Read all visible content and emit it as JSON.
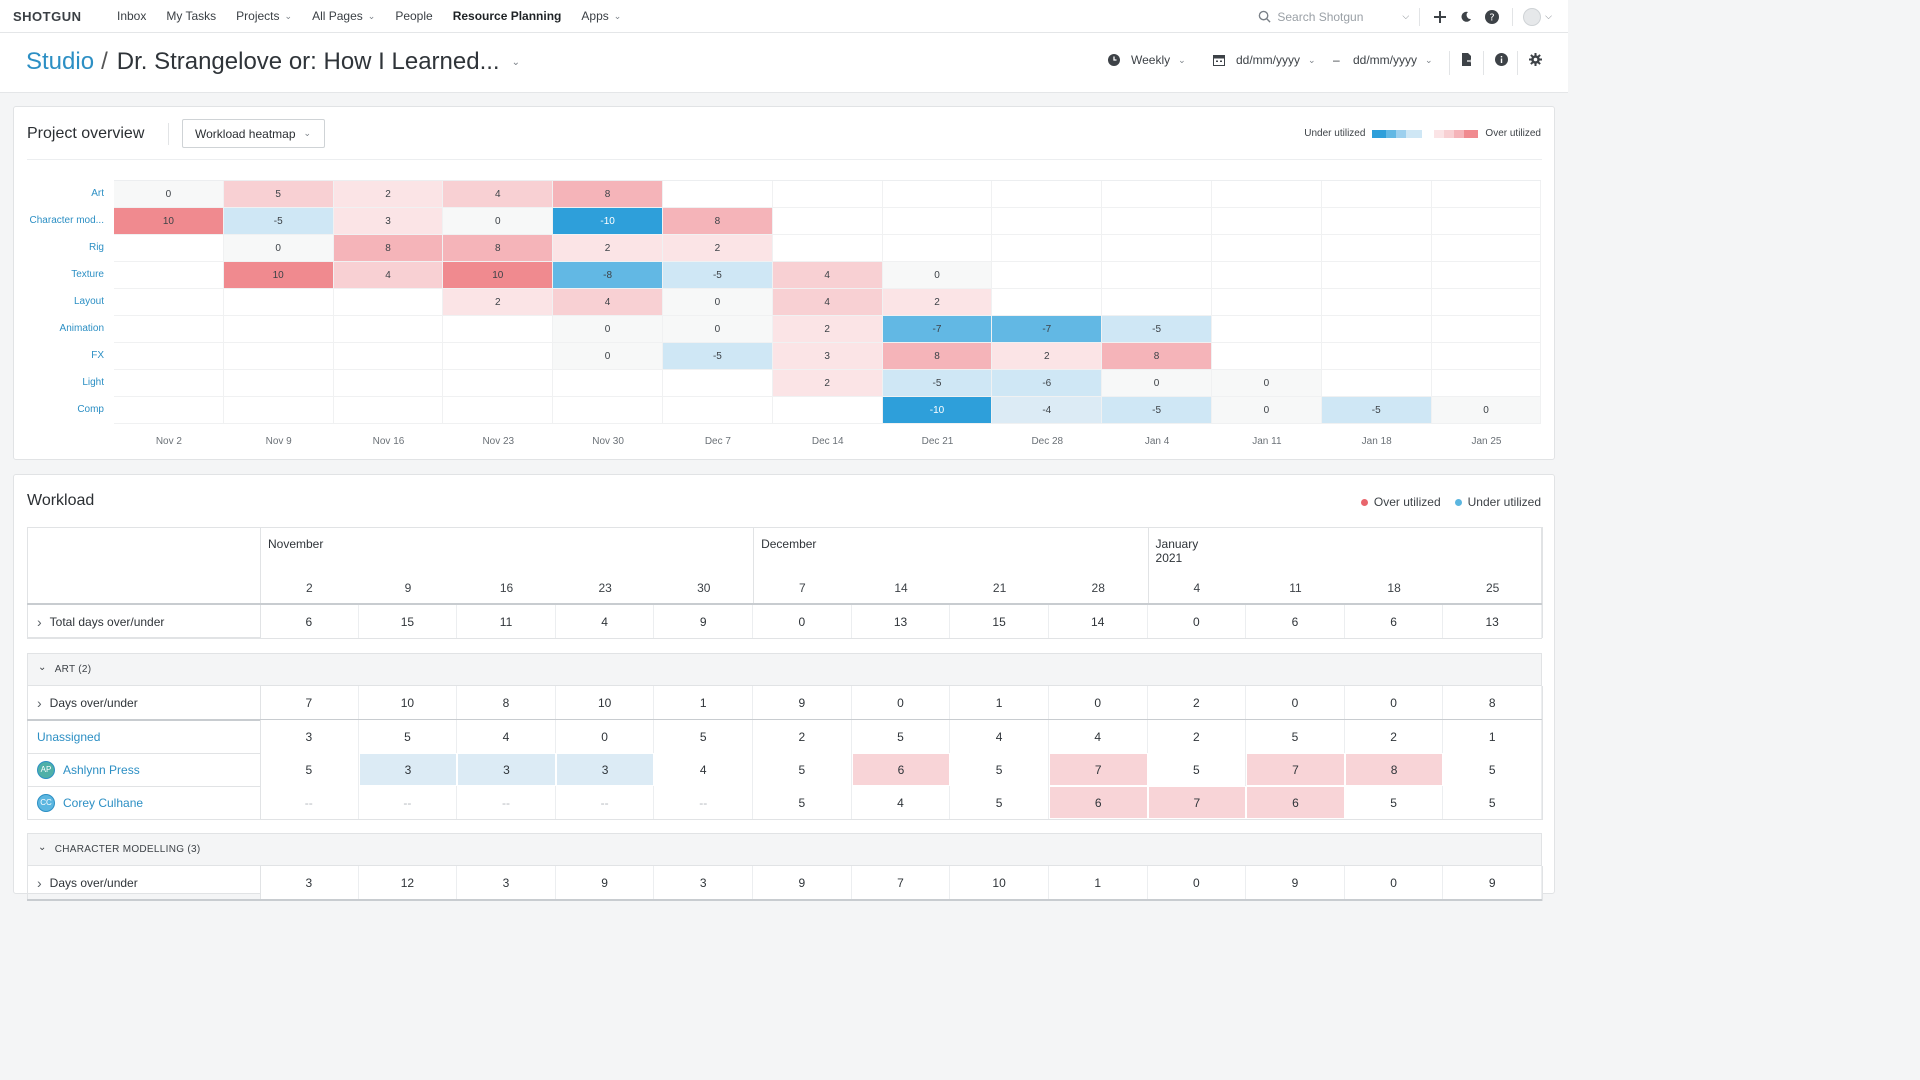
{
  "nav": {
    "logo": "SHOTGUN",
    "items": [
      {
        "label": "Inbox",
        "dropdown": false
      },
      {
        "label": "My Tasks",
        "dropdown": false
      },
      {
        "label": "Projects",
        "dropdown": true
      },
      {
        "label": "All Pages",
        "dropdown": true
      },
      {
        "label": "People",
        "dropdown": false
      },
      {
        "label": "Resource Planning",
        "dropdown": false,
        "active": true
      },
      {
        "label": "Apps",
        "dropdown": true
      }
    ],
    "search_placeholder": "Search Shotgun"
  },
  "title": {
    "studio": "Studio",
    "separator": "/",
    "project": "Dr. Strangelove or: How I Learned...",
    "period": "Weekly",
    "date_from": "dd/mm/yyyy",
    "date_sep": "–",
    "date_to": "dd/mm/yyyy"
  },
  "overview": {
    "title": "Project overview",
    "view_select": "Workload heatmap",
    "legend_under": "Under utilized",
    "legend_over": "Over utilized",
    "dates": [
      "Nov 2",
      "Nov 9",
      "Nov 16",
      "Nov 23",
      "Nov 30",
      "Dec 7",
      "Dec 14",
      "Dec 21",
      "Dec 28",
      "Jan 4",
      "Jan 11",
      "Jan 18",
      "Jan 25"
    ],
    "rows": [
      {
        "label": "Art",
        "values": [
          0,
          5,
          2,
          4,
          8,
          null,
          null,
          null,
          null,
          null,
          null,
          null,
          null
        ]
      },
      {
        "label": "Character mod...",
        "values": [
          10,
          -5,
          3,
          0,
          -10,
          8,
          null,
          null,
          null,
          null,
          null,
          null,
          null
        ]
      },
      {
        "label": "Rig",
        "values": [
          null,
          0,
          8,
          8,
          2,
          2,
          null,
          null,
          null,
          null,
          null,
          null,
          null
        ]
      },
      {
        "label": "Texture",
        "values": [
          null,
          10,
          4,
          10,
          -8,
          -5,
          4,
          0,
          null,
          null,
          null,
          null,
          null
        ]
      },
      {
        "label": "Layout",
        "values": [
          null,
          null,
          null,
          2,
          4,
          0,
          4,
          2,
          null,
          null,
          null,
          null,
          null
        ]
      },
      {
        "label": "Animation",
        "values": [
          null,
          null,
          null,
          null,
          0,
          0,
          2,
          -7,
          -7,
          -5,
          null,
          null,
          null
        ]
      },
      {
        "label": "FX",
        "values": [
          null,
          null,
          null,
          null,
          0,
          -5,
          3,
          8,
          2,
          8,
          null,
          null,
          null
        ]
      },
      {
        "label": "Light",
        "values": [
          null,
          null,
          null,
          null,
          null,
          null,
          2,
          -5,
          -6,
          0,
          0,
          null,
          null
        ]
      },
      {
        "label": "Comp",
        "values": [
          null,
          null,
          null,
          null,
          null,
          null,
          null,
          -10,
          -4,
          -5,
          0,
          -5,
          0
        ]
      }
    ]
  },
  "workload": {
    "title": "Workload",
    "legend_over": "Over utilized",
    "legend_under": "Under utilized",
    "months": [
      {
        "label": "November",
        "start": 0
      },
      {
        "label": "December",
        "start": 5
      },
      {
        "label": "January 2021",
        "start": 9
      }
    ],
    "days": [
      "2",
      "9",
      "16",
      "23",
      "30",
      "7",
      "14",
      "21",
      "28",
      "4",
      "11",
      "18",
      "25"
    ],
    "total": {
      "label": "Total days over/under",
      "values": [
        "6",
        "15",
        "11",
        "4",
        "9",
        "0",
        "13",
        "15",
        "14",
        "0",
        "6",
        "6",
        "13"
      ]
    },
    "groups": [
      {
        "label": "ART (2)",
        "summary": {
          "label": "Days over/under",
          "values": [
            "7",
            "10",
            "8",
            "10",
            "1",
            "9",
            "0",
            "1",
            "0",
            "2",
            "0",
            "0",
            "8"
          ]
        },
        "people": [
          {
            "name": "Unassigned",
            "initials": "",
            "values": [
              "3",
              "5",
              "4",
              "0",
              "5",
              "2",
              "5",
              "4",
              "4",
              "2",
              "5",
              "2",
              "1"
            ],
            "status": [
              "",
              "",
              "",
              "",
              "",
              "",
              "",
              "",
              "",
              "",
              "",
              "",
              ""
            ]
          },
          {
            "name": "Ashlynn Press",
            "initials": "AP",
            "values": [
              "5",
              "3",
              "3",
              "3",
              "4",
              "5",
              "6",
              "5",
              "7",
              "5",
              "7",
              "8",
              "5"
            ],
            "status": [
              "",
              "u",
              "u",
              "u",
              "",
              "",
              "o",
              "",
              "o",
              "",
              "o",
              "o",
              ""
            ]
          },
          {
            "name": "Corey Culhane",
            "initials": "CC",
            "values": [
              "--",
              "--",
              "--",
              "--",
              "--",
              "5",
              "4",
              "5",
              "6",
              "7",
              "6",
              "5",
              "5"
            ],
            "status": [
              "",
              "",
              "",
              "",
              "",
              "",
              "",
              "",
              "o",
              "o",
              "o",
              "",
              ""
            ]
          }
        ]
      },
      {
        "label": "CHARACTER MODELLING (3)",
        "summary": {
          "label": "Days over/under",
          "values": [
            "3",
            "12",
            "3",
            "9",
            "3",
            "9",
            "7",
            "10",
            "1",
            "0",
            "9",
            "0",
            "9"
          ]
        },
        "people": []
      }
    ]
  },
  "colors": {
    "accent": "#2c8fc4",
    "over_strong": "#f08a8f",
    "under_strong": "#2e9fda",
    "over_light": "#f8d4d7",
    "under_light": "#dcebf5"
  }
}
